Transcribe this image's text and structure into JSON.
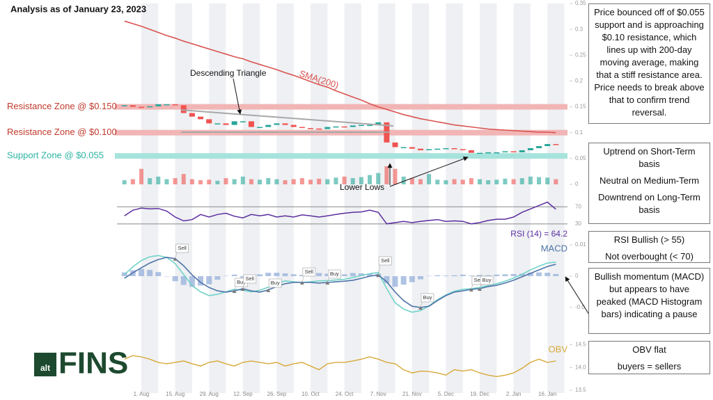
{
  "title": "Analysis as of January 23, 2023",
  "logo": {
    "badge": "alt",
    "text": "FINS"
  },
  "chart_data": {
    "type": "candlestick",
    "categories": [
      null,
      null,
      "1. Aug",
      null,
      null,
      null,
      "15. Aug",
      null,
      null,
      null,
      "29. Aug",
      null,
      null,
      null,
      "12. Sep",
      null,
      null,
      null,
      "26. Sep",
      null,
      null,
      null,
      "10. Oct",
      null,
      null,
      null,
      "24. Oct",
      null,
      null,
      null,
      "7. Nov",
      null,
      null,
      null,
      "21. Nov",
      null,
      null,
      null,
      "5. Dec",
      null,
      null,
      null,
      "19. Dec",
      null,
      null,
      null,
      "2. Jan",
      null,
      null,
      null,
      "16. Jan",
      null
    ],
    "price": {
      "ylim": [
        0,
        0.35
      ],
      "yticks": [
        0,
        0.05,
        0.1,
        0.15,
        0.2,
        0.25,
        0.3,
        0.35
      ],
      "candles": {
        "up_color": "#26a69a",
        "down_color": "#ef5350",
        "values": [
          0.153,
          0.15,
          0.149,
          0.151,
          0.155,
          0.155,
          0.153,
          0.138,
          0.131,
          0.126,
          0.118,
          0.118,
          0.115,
          0.122,
          0.122,
          0.111,
          0.111,
          0.115,
          0.118,
          0.115,
          0.111,
          0.109,
          0.108,
          0.107,
          0.111,
          0.112,
          0.111,
          0.114,
          0.115,
          0.115,
          0.12,
          0.081,
          0.072,
          0.072,
          0.069,
          0.066,
          0.068,
          0.069,
          0.07,
          0.068,
          0.066,
          0.061,
          0.061,
          0.062,
          0.062,
          0.064,
          0.062,
          0.066,
          0.07,
          0.074,
          0.078,
          0.077
        ]
      },
      "sma": {
        "name": "SMA(200)",
        "color": "#d9534f",
        "values": [
          0.316,
          0.311,
          0.306,
          0.3,
          0.294,
          0.288,
          0.283,
          0.277,
          0.272,
          0.267,
          0.262,
          0.257,
          0.252,
          0.247,
          0.243,
          0.237,
          0.232,
          0.227,
          0.222,
          0.216,
          0.211,
          0.205,
          0.199,
          0.193,
          0.188,
          0.181,
          0.175,
          0.169,
          0.163,
          0.156,
          0.15,
          0.145,
          0.14,
          0.135,
          0.131,
          0.127,
          0.124,
          0.121,
          0.118,
          0.115,
          0.113,
          0.111,
          0.109,
          0.107,
          0.106,
          0.105,
          0.104,
          0.103,
          0.102,
          0.101,
          0.101,
          0.1
        ]
      },
      "volume": {
        "values": [
          0.008,
          0.01,
          0.03,
          0.012,
          0.015,
          0.01,
          0.012,
          0.02,
          0.01,
          0.008,
          0.009,
          0.007,
          0.012,
          0.01,
          0.015,
          0.01,
          0.009,
          0.012,
          0.01,
          0.008,
          0.01,
          0.012,
          0.009,
          0.011,
          0.01,
          0.013,
          0.015,
          0.012,
          0.014,
          0.018,
          0.022,
          0.035,
          0.03,
          0.015,
          0.012,
          0.01,
          0.02,
          0.009,
          0.008,
          0.01,
          0.009,
          0.012,
          0.01,
          0.008,
          0.009,
          0.011,
          0.01,
          0.012,
          0.015,
          0.014,
          0.013,
          0.01
        ]
      },
      "zones": [
        {
          "label": "Resistance Zone @ $0.150",
          "value": 0.15,
          "color": "#f2b5b5",
          "text_color": "#c0392b"
        },
        {
          "label": "Resistance Zone @ $0.100",
          "value": 0.1,
          "color": "#f2b5b5",
          "text_color": "#c0392b"
        },
        {
          "label": "Support Zone @ $0.055",
          "value": 0.055,
          "color": "#a6e3dc",
          "text_color": "#2bb3a3"
        }
      ],
      "annotations": {
        "triangle": "Descending Triangle",
        "lower_lows": "Lower Lows"
      }
    },
    "rsi": {
      "label": "RSI (14) = 64.2",
      "color": "#5b2d9e",
      "ylim": [
        20,
        85
      ],
      "yticks": [
        70,
        30
      ],
      "values": [
        49,
        62,
        67,
        65,
        66,
        60,
        46,
        37,
        40,
        52,
        46,
        52,
        55,
        48,
        44,
        52,
        49,
        52,
        46,
        49,
        46,
        51,
        49,
        46,
        49,
        52,
        55,
        57,
        58,
        62,
        57,
        30,
        33,
        36,
        33,
        36,
        38,
        40,
        36,
        37,
        36,
        30,
        33,
        38,
        41,
        41,
        46,
        57,
        65,
        73,
        81,
        64.2
      ]
    },
    "macd": {
      "ylim": [
        -0.014,
        0.0115
      ],
      "yticks": [
        0.01,
        0,
        {
          "value": -0.01,
          "label": "-0.0"
        }
      ],
      "series": [
        {
          "name": "MACD",
          "color": "#4f73a8",
          "values": [
            -0.0007,
            0.0011,
            0.0027,
            0.0042,
            0.0053,
            0.006,
            0.0056,
            0.0033,
            0.0004,
            -0.002,
            -0.0036,
            -0.0047,
            -0.0051,
            -0.0047,
            -0.004,
            -0.0047,
            -0.0051,
            -0.0044,
            -0.0033,
            -0.0024,
            -0.002,
            -0.002,
            -0.002,
            -0.0022,
            -0.002,
            -0.0018,
            -0.0016,
            -0.0013,
            -0.0007,
            0,
            0.0004,
            -0.0018,
            -0.0051,
            -0.0078,
            -0.0096,
            -0.01,
            -0.0096,
            -0.0078,
            -0.0062,
            -0.0051,
            -0.0047,
            -0.0042,
            -0.004,
            -0.0033,
            -0.0029,
            -0.0022,
            -0.0013,
            -0.0002,
            0.0009,
            0.002,
            0.0031,
            0.0038
          ]
        },
        {
          "color": "#6fd3c9",
          "values": [
            0.0005,
            0.003,
            0.005,
            0.0062,
            0.0066,
            0.006,
            0.004,
            0.0005,
            -0.003,
            -0.005,
            -0.0062,
            -0.0058,
            -0.005,
            -0.0042,
            -0.0045,
            -0.005,
            -0.0045,
            -0.0035,
            -0.0022,
            -0.0015,
            -0.0018,
            -0.002,
            -0.0018,
            -0.0015,
            -0.0014,
            -0.0012,
            -0.001,
            -0.0004,
            0.0002,
            0.0008,
            0.0012,
            -0.004,
            -0.0085,
            -0.0105,
            -0.0115,
            -0.011,
            -0.0095,
            -0.0075,
            -0.006,
            -0.0048,
            -0.0042,
            -0.004,
            -0.0036,
            -0.003,
            -0.0024,
            -0.0016,
            -0.0006,
            0.0006,
            0.002,
            0.0032,
            0.0042,
            0.0045
          ]
        }
      ],
      "histogram": {
        "color": "#8fa9d8",
        "values": [
          0.0012,
          0.0019,
          0.0023,
          0.002,
          0.0013,
          0,
          -0.0016,
          -0.0028,
          -0.0034,
          -0.003,
          -0.0026,
          -0.0011,
          0.0001,
          0.0005,
          -0.0005,
          -0.0003,
          0.0006,
          0.0011,
          0.0011,
          0.0009,
          0.0006,
          0.0004,
          0.0006,
          0.001,
          0.0008,
          0.0008,
          0.0006,
          0.001,
          0.0009,
          0.0008,
          0.0008,
          -0.0022,
          -0.0034,
          -0.0027,
          -0.0019,
          -0.001,
          0.0001,
          0.0003,
          0.0002,
          0.0003,
          0.0005,
          0.0002,
          0.0004,
          0.0003,
          0.0005,
          0.0006,
          0.0007,
          0.0008,
          0.0011,
          0.0012,
          0.0011,
          0.0007
        ]
      },
      "signals": [
        "Sell",
        "Buy",
        "Sell",
        "Buy",
        "Sell",
        "Buy",
        "Sell",
        "Buy",
        "Sell",
        "Buy"
      ]
    },
    "obv": {
      "name": "OBV",
      "color": "#d9a93a",
      "ylim": [
        13.44,
        14.58
      ],
      "yticks": [
        14.5,
        {
          "value": 14,
          "label": "14.0"
        },
        13.5
      ],
      "values": [
        14.18,
        14.26,
        14.23,
        14.18,
        14.11,
        14.08,
        14.11,
        14.14,
        14.08,
        14.03,
        14.11,
        14.14,
        14.08,
        14.03,
        14.11,
        14.14,
        14.11,
        14.08,
        14.11,
        14.03,
        14.08,
        14.11,
        14.03,
        13.95,
        14.08,
        14.11,
        14.11,
        14.14,
        14.18,
        14.23,
        14.18,
        14.11,
        14.08,
        13.95,
        13.88,
        13.92,
        13.91,
        13.88,
        13.83,
        13.95,
        13.92,
        13.95,
        13.88,
        13.83,
        13.8,
        13.83,
        13.88,
        13.98,
        14.11,
        14.18,
        14.11,
        14.14
      ]
    }
  },
  "notes": [
    [
      "Price bounced off of $0.055 support and is approaching $0.10 resistance, which lines up with 200-day moving average, making that a stiff resistance area.  Price needs to break above that to confirm trend reversal."
    ],
    [
      "Uptrend on Short-Term basis",
      "Neutral on Medium-Term",
      "Downtrend on Long-Term basis"
    ],
    [
      "RSI Bullish (> 55)",
      "Not overbought (< 70)"
    ],
    [
      "Bullish momentum (MACD) but appears to have peaked (MACD Histogram bars) indicating a pause"
    ],
    [
      "OBV flat",
      "buyers = sellers"
    ]
  ]
}
